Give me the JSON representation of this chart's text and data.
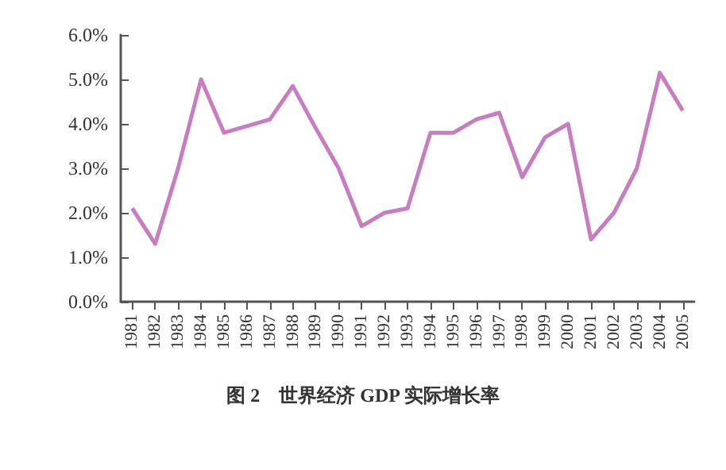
{
  "chart_data": {
    "type": "line",
    "title": "图 2　世界经济 GDP 实际增长率",
    "categories": [
      "1981",
      "1982",
      "1983",
      "1984",
      "1985",
      "1986",
      "1987",
      "1988",
      "1989",
      "1990",
      "1991",
      "1992",
      "1993",
      "1994",
      "1995",
      "1996",
      "1997",
      "1998",
      "1999",
      "2000",
      "2001",
      "2002",
      "2003",
      "2004",
      "2005"
    ],
    "series": [
      {
        "color": "#c77dc0",
        "values": [
          2.1,
          1.3,
          3.0,
          5.0,
          3.8,
          3.95,
          4.1,
          4.85,
          3.9,
          3.0,
          1.7,
          2.0,
          2.1,
          3.8,
          3.8,
          4.1,
          4.25,
          2.8,
          3.7,
          4.0,
          1.4,
          2.0,
          3.0,
          5.15,
          4.3
        ]
      }
    ],
    "ylim": [
      0,
      6
    ],
    "yticks": [
      {
        "value": 0,
        "label": "0.0%"
      },
      {
        "value": 1,
        "label": "1.0%"
      },
      {
        "value": 2,
        "label": "2.0%"
      },
      {
        "value": 3,
        "label": "3.0%"
      },
      {
        "value": 4,
        "label": "4.0%"
      },
      {
        "value": 5,
        "label": "5.0%"
      },
      {
        "value": 6,
        "label": "6.0%"
      }
    ],
    "marker": "none",
    "line_style": "solid"
  }
}
